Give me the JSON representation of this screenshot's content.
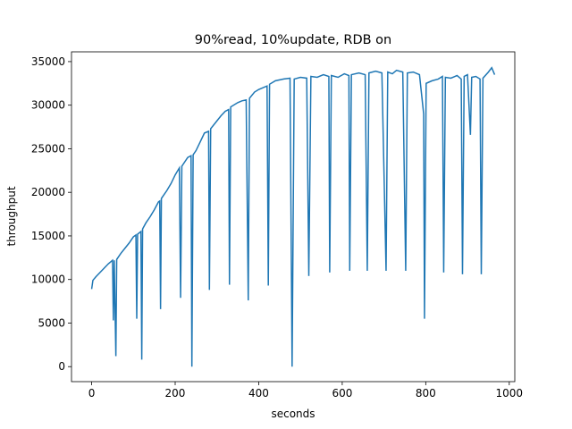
{
  "chart_data": {
    "type": "line",
    "title": "90%read, 10%update, RDB on",
    "x_label": "seconds",
    "y_label": "throughput",
    "x": [
      0,
      3,
      10,
      20,
      30,
      40,
      50,
      52,
      54,
      58,
      60,
      70,
      80,
      90,
      100,
      106,
      108,
      110,
      118,
      120,
      122,
      130,
      140,
      150,
      160,
      163,
      165,
      167,
      180,
      190,
      200,
      210,
      213,
      216,
      230,
      238,
      240,
      243,
      250,
      260,
      270,
      280,
      282,
      285,
      300,
      310,
      320,
      328,
      330,
      333,
      350,
      360,
      370,
      375,
      378,
      390,
      400,
      410,
      420,
      423,
      426,
      440,
      460,
      475,
      480,
      485,
      500,
      515,
      520,
      525,
      540,
      555,
      568,
      570,
      574,
      590,
      605,
      616,
      618,
      622,
      640,
      655,
      660,
      664,
      680,
      695,
      705,
      709,
      720,
      730,
      745,
      752,
      756,
      770,
      785,
      795,
      797,
      801,
      815,
      830,
      840,
      843,
      847,
      860,
      875,
      885,
      888,
      892,
      900,
      907,
      910,
      920,
      930,
      933,
      937,
      950,
      958,
      965
    ],
    "series": [
      {
        "name": "throughput",
        "color": "#1f77b4",
        "values": [
          8900,
          9900,
          10300,
          10800,
          11300,
          11800,
          12200,
          5300,
          12200,
          1200,
          12300,
          13000,
          13600,
          14200,
          14900,
          15100,
          5500,
          15200,
          15500,
          800,
          15800,
          16500,
          17200,
          18000,
          18900,
          19000,
          6600,
          19300,
          20200,
          21000,
          22000,
          22800,
          7900,
          23000,
          24000,
          24200,
          0,
          24300,
          24800,
          25800,
          26800,
          27000,
          8800,
          27300,
          28200,
          28800,
          29300,
          29500,
          9400,
          29800,
          30300,
          30500,
          30600,
          7600,
          30800,
          31500,
          31800,
          32000,
          32200,
          9300,
          32400,
          32800,
          33000,
          33100,
          0,
          33000,
          33200,
          33100,
          10400,
          33300,
          33200,
          33500,
          33300,
          10800,
          33400,
          33200,
          33600,
          33400,
          11000,
          33500,
          33700,
          33500,
          11000,
          33700,
          33900,
          33700,
          11000,
          33800,
          33600,
          34000,
          33800,
          11000,
          33700,
          33800,
          33500,
          29000,
          5500,
          32500,
          32800,
          33000,
          33300,
          10800,
          33200,
          33100,
          33400,
          33000,
          10600,
          33300,
          33500,
          26600,
          33200,
          33300,
          33000,
          10600,
          33100,
          33800,
          34300,
          33500
        ]
      }
    ],
    "xlim": [
      -48.25,
      1013.25
    ],
    "ylim": [
      -1720,
      36120
    ],
    "xticks": [
      0,
      200,
      400,
      600,
      800,
      1000
    ],
    "yticks": [
      0,
      5000,
      10000,
      15000,
      20000,
      25000,
      30000,
      35000
    ]
  }
}
